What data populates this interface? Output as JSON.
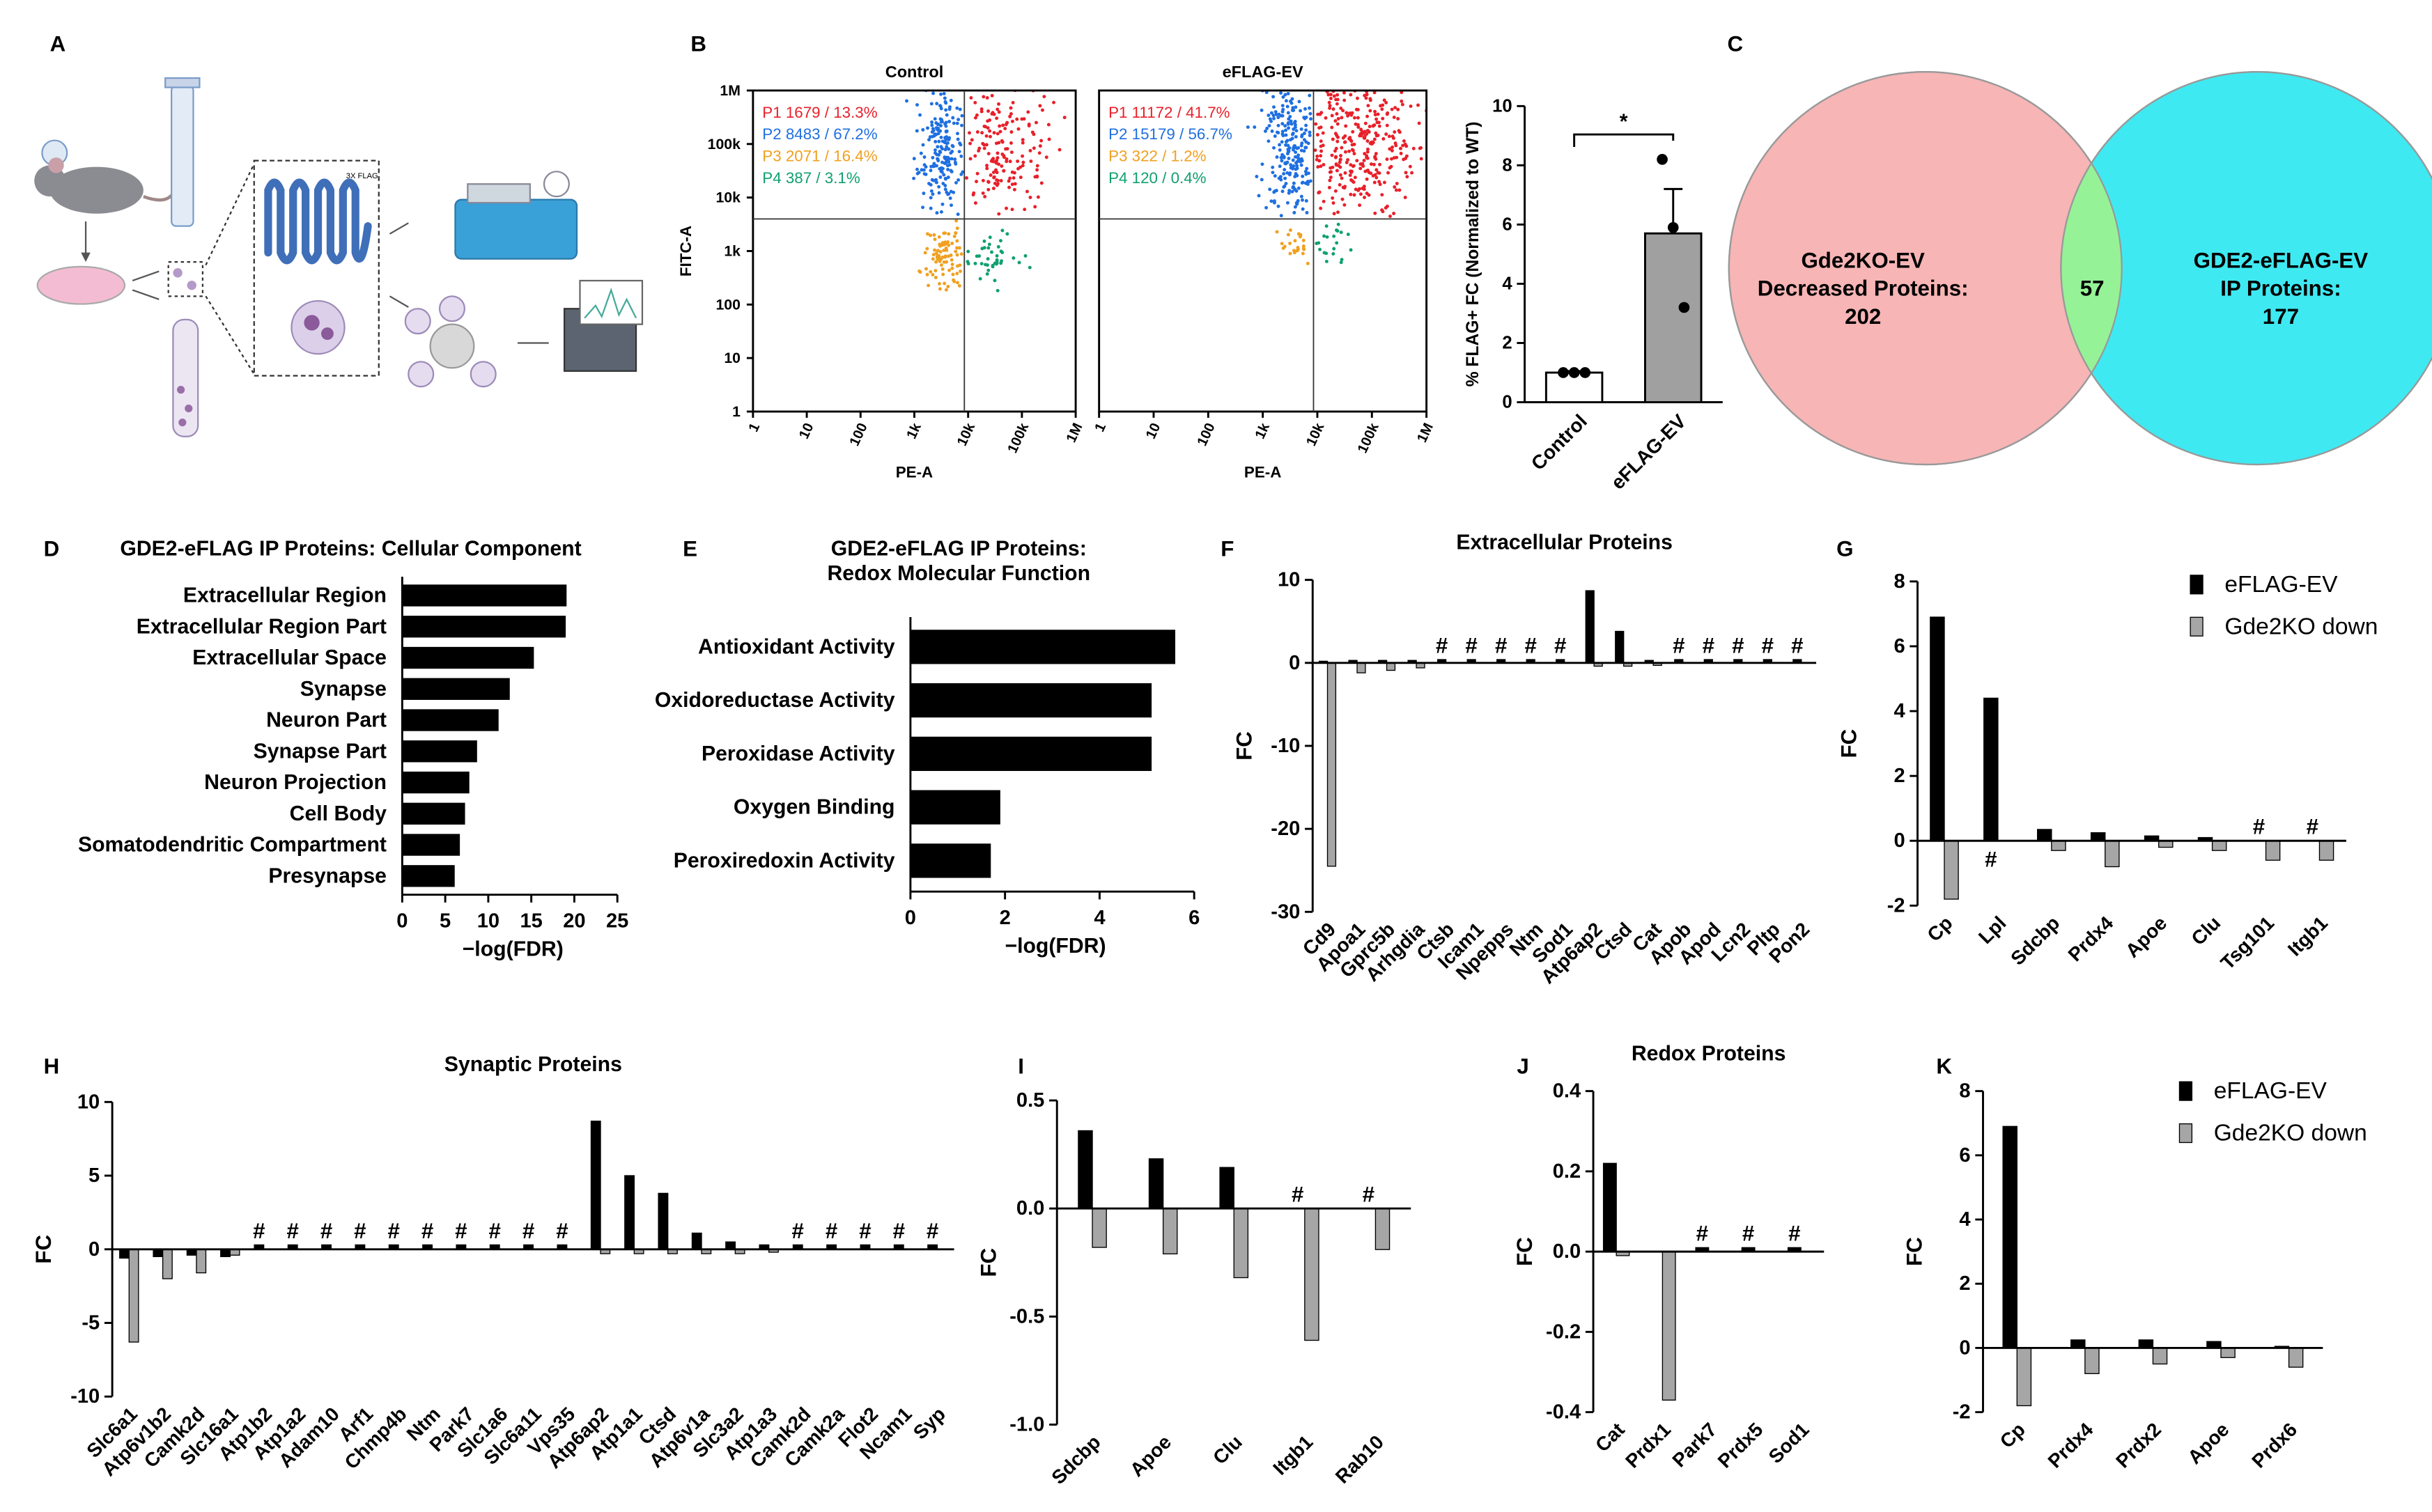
{
  "panel_a": {
    "label": "A",
    "annotation": "3X FLAG"
  },
  "chart_data": [
    {
      "panel": "B",
      "type": "flow",
      "title": "Control",
      "xlabel": "PE-A",
      "ylabel": "FITC-A",
      "log": true,
      "xlim": [
        1,
        1000000
      ],
      "ylim": [
        1,
        1000000
      ],
      "xticks": [
        1,
        10,
        100,
        {
          "value": 1000,
          "label": "1k"
        },
        {
          "value": 10000,
          "label": "10k"
        },
        {
          "value": 100000,
          "label": "100k"
        },
        {
          "value": 1000000,
          "label": "1M"
        }
      ],
      "yticks": [
        1,
        10,
        100,
        {
          "value": 1000,
          "label": "1k"
        },
        {
          "value": 10000,
          "label": "10k"
        },
        {
          "value": 100000,
          "label": "100k"
        },
        {
          "value": 1000000,
          "label": "1M"
        }
      ],
      "gates": [
        {
          "text": "P1 1679 / 13.3%",
          "color": "#e8202a"
        },
        {
          "text": "P2 8483 / 67.2%",
          "color": "#1f6fe0"
        },
        {
          "text": "P3 2071 / 16.4%",
          "color": "#f0a020"
        },
        {
          "text": "P4 387 / 3.1%",
          "color": "#10a070"
        }
      ]
    },
    {
      "type": "flow",
      "title": "eFLAG-EV",
      "xlabel": "PE-A",
      "log": true,
      "xlim": [
        1,
        1000000
      ],
      "ylim": [
        1,
        1000000
      ],
      "xticks": [
        1,
        10,
        100,
        {
          "value": 1000,
          "label": "1k"
        },
        {
          "value": 10000,
          "label": "10k"
        },
        {
          "value": 100000,
          "label": "100k"
        },
        {
          "value": 1000000,
          "label": "1M"
        }
      ],
      "gates": [
        {
          "text": "P1 11172 / 41.7%",
          "color": "#e8202a"
        },
        {
          "text": "P2 15179 / 56.7%",
          "color": "#1f6fe0"
        },
        {
          "text": "P3 322 / 1.2%",
          "color": "#f0a020"
        },
        {
          "text": "P4 120 / 0.4%",
          "color": "#10a070"
        }
      ]
    },
    {
      "type": "bar_dots",
      "categories": [
        "Control",
        "eFLAG-EV"
      ],
      "values": [
        1,
        5.7
      ],
      "errors": [
        0.05,
        1.5
      ],
      "points": [
        [
          1,
          1,
          1
        ],
        [
          8.2,
          5.9,
          3.2
        ]
      ],
      "colors": [
        "#ffffff",
        "#a0a0a0"
      ],
      "ylim": [
        0,
        10
      ],
      "yticks": [
        0,
        2,
        4,
        6,
        8,
        10
      ],
      "ylabel": "% FLAG+ FC (Normalized to WT)",
      "annotation": "*"
    },
    {
      "panel": "C",
      "type": "venn",
      "sets": [
        {
          "lines": [
            "Gde2KO-EV",
            "Decreased Proteins:"
          ],
          "count": 202,
          "color": "#f7b5b5"
        },
        {
          "lines": [
            "GDE2-eFLAG-EV",
            "IP Proteins:"
          ],
          "count": 177,
          "color": "#3fe9f2"
        }
      ],
      "overlap": 57,
      "overlap_color": "#96f296"
    },
    {
      "panel": "D",
      "type": "hbar",
      "title": "GDE2-eFLAG IP Proteins: Cellular Component",
      "categories": [
        "Extracellular Region",
        "Extracellular Region Part",
        "Extracellular Space",
        "Synapse",
        "Neuron Part",
        "Synapse Part",
        "Neuron Projection",
        "Cell Body",
        "Somatodendritic Compartment",
        "Presynapse"
      ],
      "values": [
        19.1,
        19.0,
        15.3,
        12.5,
        11.2,
        8.7,
        7.8,
        7.3,
        6.7,
        6.1
      ],
      "color": "#000000",
      "xlim": [
        0,
        25
      ],
      "xticks": [
        0,
        5,
        10,
        15,
        20,
        25
      ],
      "xlabel": "−log(FDR)"
    },
    {
      "panel": "E",
      "type": "hbar",
      "title": [
        "GDE2-eFLAG IP Proteins:",
        "Redox Molecular Function"
      ],
      "categories": [
        "Antioxidant Activity",
        "Oxidoreductase Activity",
        "Peroxidase Activity",
        "Oxygen Binding",
        "Peroxiredoxin Activity"
      ],
      "values": [
        5.6,
        5.1,
        5.1,
        1.9,
        1.7
      ],
      "color": "#000000",
      "xlim": [
        0,
        6
      ],
      "xticks": [
        0,
        2,
        4,
        6
      ],
      "xlabel": "−log(FDR)"
    },
    {
      "panel": "F",
      "type": "grouped_bar",
      "title": "Extracellular Proteins",
      "ylabel": "FC",
      "categories": [
        "Cd9",
        "Apoa1",
        "Gprc5b",
        "Arhgdia",
        "Ctsb",
        "Icam1",
        "Npepps",
        "Ntm",
        "Sod1",
        "Atp6ap2",
        "Ctsd",
        "Cat",
        "Apob",
        "Apod",
        "Lcn2",
        "Pltp",
        "Pon2"
      ],
      "series": [
        {
          "color": "#000000",
          "values": [
            0.2,
            0.3,
            0.3,
            0.3,
            0.4,
            0.4,
            0.4,
            0.4,
            0.4,
            8.7,
            3.8,
            0.3,
            0.4,
            0.4,
            0.4,
            0.4,
            0.4
          ]
        },
        {
          "color": "#a6a6a6",
          "values": [
            -24.5,
            -1.2,
            -0.9,
            -0.6,
            null,
            null,
            null,
            null,
            null,
            -0.4,
            -0.4,
            -0.3,
            null,
            null,
            null,
            null,
            null
          ]
        }
      ],
      "annotations": [
        null,
        null,
        null,
        null,
        "#",
        "#",
        "#",
        "#",
        "#",
        null,
        null,
        null,
        "#",
        "#",
        "#",
        "#",
        "#"
      ],
      "ylim": [
        -30,
        10
      ],
      "yticks": [
        -30,
        -20,
        -10,
        0,
        10
      ]
    },
    {
      "panel": "G",
      "type": "grouped_bar",
      "ylabel": "FC",
      "legend": true,
      "categories": [
        "Cp",
        "Lpl",
        "Sdcbp",
        "Prdx4",
        "Apoe",
        "Clu",
        "Tsg101",
        "Itgb1"
      ],
      "series": [
        {
          "name": "eFLAG-EV",
          "color": "#000000",
          "values": [
            6.9,
            4.4,
            0.35,
            0.25,
            0.15,
            0.1,
            null,
            null
          ]
        },
        {
          "name": "Gde2KO down",
          "color": "#a6a6a6",
          "values": [
            -1.8,
            null,
            -0.3,
            -0.8,
            -0.2,
            -0.3,
            -0.6,
            -0.6
          ]
        }
      ],
      "annotations": [
        null,
        "#",
        null,
        null,
        null,
        null,
        "#",
        "#"
      ],
      "ylim": [
        -2,
        8
      ],
      "yticks": [
        -2,
        0,
        2,
        4,
        6,
        8
      ]
    },
    {
      "panel": "H",
      "type": "grouped_bar",
      "title": "Synaptic Proteins",
      "ylabel": "FC",
      "categories": [
        "Slc6a1",
        "Atp6v1b2",
        "Camk2d",
        "Slc16a1",
        "Atp1b2",
        "Atp1a2",
        "Adam10",
        "Arf1",
        "Chmp4b",
        "Ntm",
        "Park7",
        "Slc1a6",
        "Slc6a11",
        "Vps35",
        "Atp6ap2",
        "Atp1a1",
        "Ctsd",
        "Atp6v1a",
        "Slc3a2",
        "Atp1a3",
        "Camk2d",
        "Camk2a",
        "Flot2",
        "Ncam1",
        "Syp"
      ],
      "series": [
        {
          "color": "#000000",
          "values": [
            -0.6,
            -0.5,
            -0.4,
            -0.5,
            0.3,
            0.3,
            0.3,
            0.3,
            0.3,
            0.3,
            0.3,
            0.3,
            0.3,
            0.3,
            8.7,
            5.0,
            3.8,
            1.1,
            0.5,
            0.3,
            0.3,
            0.3,
            0.3,
            0.3,
            0.3
          ]
        },
        {
          "color": "#a6a6a6",
          "values": [
            -6.3,
            -2.0,
            -1.6,
            -0.4,
            null,
            null,
            null,
            null,
            null,
            null,
            null,
            null,
            null,
            null,
            -0.3,
            -0.3,
            -0.3,
            -0.3,
            -0.3,
            -0.2,
            null,
            null,
            null,
            null,
            null
          ]
        }
      ],
      "annotations": [
        null,
        null,
        null,
        null,
        "#",
        "#",
        "#",
        "#",
        "#",
        "#",
        "#",
        "#",
        "#",
        "#",
        null,
        null,
        null,
        null,
        null,
        null,
        "#",
        "#",
        "#",
        "#",
        "#"
      ],
      "ylim": [
        -10,
        10
      ],
      "yticks": [
        -10,
        -5,
        0,
        5,
        10
      ]
    },
    {
      "panel": "I",
      "type": "grouped_bar",
      "ylabel": "FC",
      "categories": [
        "Sdcbp",
        "Apoe",
        "Clu",
        "Itgb1",
        "Rab10"
      ],
      "series": [
        {
          "color": "#000000",
          "values": [
            0.36,
            0.23,
            0.19,
            null,
            null
          ]
        },
        {
          "color": "#a6a6a6",
          "values": [
            -0.18,
            -0.21,
            -0.32,
            -0.61,
            -0.19
          ]
        }
      ],
      "annotations": [
        null,
        null,
        null,
        "#",
        "#"
      ],
      "ylim": [
        -1,
        0.5
      ],
      "yticks": [
        {
          "value": -1,
          "label": "-1.0"
        },
        {
          "value": -0.5,
          "label": "-0.5"
        },
        {
          "value": 0,
          "label": "0.0"
        },
        0.5
      ]
    },
    {
      "panel": "J",
      "type": "grouped_bar",
      "title": "Redox Proteins",
      "ylabel": "FC",
      "categories": [
        "Cat",
        "Prdx1",
        "Park7",
        "Prdx5",
        "Sod1"
      ],
      "series": [
        {
          "color": "#000000",
          "values": [
            0.22,
            null,
            0.01,
            0.01,
            0.01
          ]
        },
        {
          "color": "#a6a6a6",
          "values": [
            -0.01,
            -0.37,
            null,
            null,
            null
          ]
        }
      ],
      "annotations": [
        null,
        null,
        "#",
        "#",
        "#"
      ],
      "ylim": [
        -0.4,
        0.4
      ],
      "yticks": [
        -0.4,
        -0.2,
        {
          "value": 0,
          "label": "0.0"
        },
        0.2,
        0.4
      ]
    },
    {
      "panel": "K",
      "type": "grouped_bar",
      "ylabel": "FC",
      "legend": true,
      "categories": [
        "Cp",
        "Prdx4",
        "Prdx2",
        "Apoe",
        "Prdx6"
      ],
      "series": [
        {
          "name": "eFLAG-EV",
          "color": "#000000",
          "values": [
            6.9,
            0.25,
            0.25,
            0.2,
            0.05
          ]
        },
        {
          "name": "Gde2KO down",
          "color": "#a6a6a6",
          "values": [
            -1.8,
            -0.8,
            -0.5,
            -0.3,
            -0.6
          ]
        }
      ],
      "ylim": [
        -2,
        8
      ],
      "yticks": [
        -2,
        0,
        2,
        4,
        6,
        8
      ]
    }
  ]
}
